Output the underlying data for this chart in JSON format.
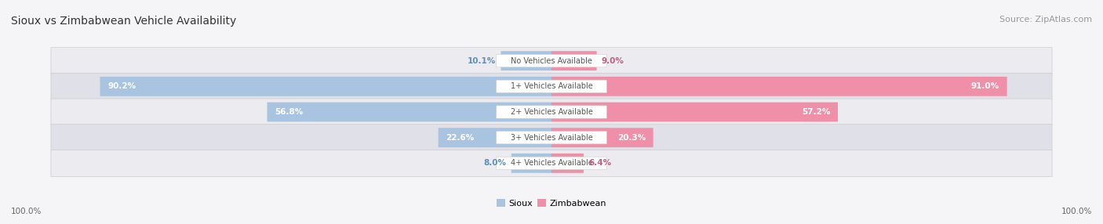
{
  "title": "Sioux vs Zimbabwean Vehicle Availability",
  "source": "Source: ZipAtlas.com",
  "categories": [
    "No Vehicles Available",
    "1+ Vehicles Available",
    "2+ Vehicles Available",
    "3+ Vehicles Available",
    "4+ Vehicles Available"
  ],
  "sioux_values": [
    10.1,
    90.2,
    56.8,
    22.6,
    8.0
  ],
  "zimbabwean_values": [
    9.0,
    91.0,
    57.2,
    20.3,
    6.4
  ],
  "sioux_color": "#a8c4e0",
  "zimbabwean_color": "#f090a8",
  "row_bg_colors": [
    "#ebebf0",
    "#e0e0e8",
    "#ebebf0",
    "#e0e0e8",
    "#ebebf0"
  ],
  "max_value": 100.0,
  "title_fontsize": 10,
  "source_fontsize": 8,
  "figsize": [
    14.06,
    2.86
  ]
}
